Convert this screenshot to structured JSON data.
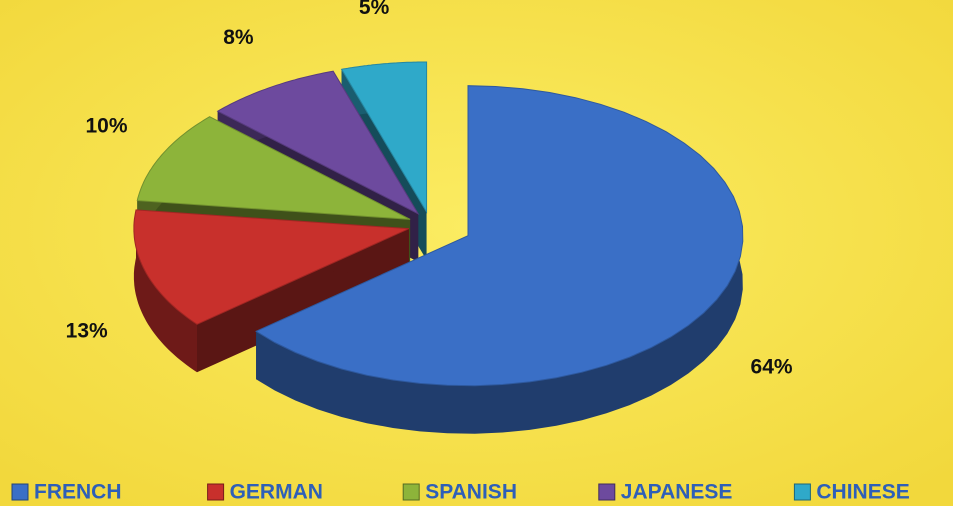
{
  "chart_data": {
    "type": "pie",
    "categories": [
      "FRENCH",
      "GERMAN",
      "SPANISH",
      "JAPANESE",
      "CHINESE"
    ],
    "values": [
      64,
      13,
      10,
      8,
      5
    ],
    "value_labels": [
      "64%",
      "13%",
      "10%",
      "8%",
      "5%"
    ],
    "colors": [
      "#3a6fc6",
      "#c8302c",
      "#8db43a",
      "#6d4a9e",
      "#2fa9c9"
    ],
    "legend": "bottom"
  }
}
